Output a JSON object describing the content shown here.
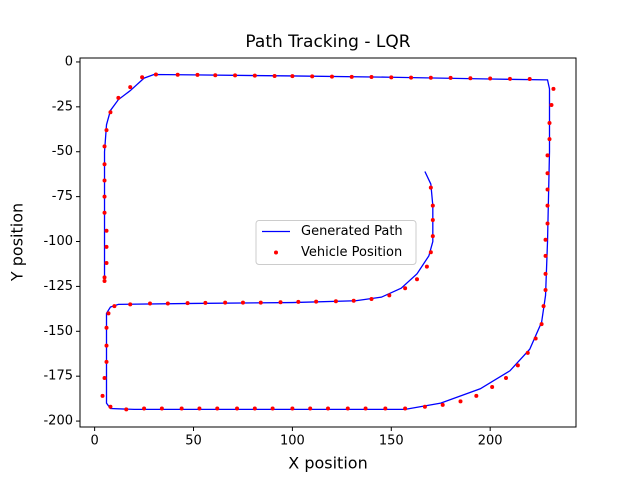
{
  "chart_data": {
    "type": "line",
    "title": "Path Tracking - LQR",
    "x_label": "X position",
    "y_label": "Y position",
    "xlim": [
      -7.4,
      243.4
    ],
    "ylim": [
      -203.3,
      2.2
    ],
    "xticks": [
      0,
      50,
      100,
      150,
      200
    ],
    "yticks": [
      0,
      -25,
      -50,
      -75,
      -100,
      -125,
      -150,
      -175,
      -200
    ],
    "legend_loc": "center",
    "series": [
      {
        "name": "Generated Path",
        "type": "line",
        "color": "#0000ff",
        "x": [
          167,
          170,
          171,
          171,
          169,
          163,
          155,
          145,
          132,
          100,
          50,
          12,
          8,
          6,
          6,
          6,
          8,
          20,
          100,
          157,
          175,
          195,
          210,
          220,
          226,
          228,
          229,
          230,
          230,
          229,
          200,
          150,
          100,
          50,
          30,
          25,
          18,
          12,
          8,
          6,
          5,
          5
        ],
        "values": [
          -61,
          -68,
          -80,
          -100,
          -108,
          -118,
          -126,
          -131,
          -133,
          -134,
          -134.5,
          -135,
          -136.5,
          -140,
          -160,
          -190,
          -193,
          -193.5,
          -193.5,
          -193.5,
          -190,
          -182,
          -172,
          -160,
          -145,
          -130,
          -100,
          -50,
          -15,
          -10,
          -9.5,
          -8.5,
          -7.8,
          -7.2,
          -7,
          -9,
          -16,
          -21,
          -27,
          -35,
          -50,
          -120
        ]
      },
      {
        "name": "Vehicle Position",
        "type": "scatter",
        "color": "#ff0000",
        "x": [
          31,
          42,
          52,
          61,
          71,
          81,
          91,
          100,
          110,
          120,
          130,
          140,
          150,
          160,
          170,
          180,
          190,
          200,
          210,
          220,
          24,
          18,
          12,
          8,
          6,
          5,
          5,
          5,
          5,
          5,
          6,
          6,
          6,
          5,
          5,
          232,
          231,
          230,
          230,
          229,
          229,
          229,
          229,
          229,
          228,
          228,
          228,
          228,
          227,
          226,
          223,
          219,
          214,
          208,
          201,
          193,
          185,
          176,
          167,
          157,
          147,
          137,
          128,
          118,
          109,
          100,
          90,
          81,
          72,
          62,
          53,
          44,
          34,
          25,
          16,
          8,
          4,
          5,
          6,
          6,
          6,
          7,
          10,
          18,
          28,
          37,
          47,
          56,
          66,
          75,
          84,
          94,
          103,
          112,
          122,
          131,
          140,
          149,
          157,
          163,
          168,
          170,
          171,
          171,
          171,
          170
        ],
        "values": [
          -7,
          -7.1,
          -7.2,
          -7.4,
          -7.5,
          -7.6,
          -7.8,
          -7.9,
          -8,
          -8.2,
          -8.3,
          -8.4,
          -8.6,
          -8.7,
          -8.8,
          -8.9,
          -9.1,
          -9.2,
          -9.4,
          -9.5,
          -8.5,
          -14,
          -20,
          -28,
          -38,
          -47,
          -57,
          -66,
          -75,
          -84,
          -94,
          -103,
          -112,
          -120,
          -122,
          -15,
          -24,
          -34,
          -43,
          -52,
          -62,
          -71,
          -80,
          -90,
          -99,
          -108,
          -118,
          -127,
          -136,
          -146,
          -154,
          -162,
          -169,
          -176,
          -181,
          -186,
          -189,
          -191,
          -192,
          -193,
          -193,
          -193,
          -193,
          -193,
          -193,
          -193,
          -193,
          -193,
          -193,
          -193,
          -193,
          -193,
          -193,
          -193,
          -193.5,
          -192,
          -186,
          -176,
          -167,
          -158,
          -148,
          -140,
          -136,
          -135,
          -134.5,
          -134.5,
          -134.3,
          -134.2,
          -134,
          -134,
          -134,
          -133.8,
          -133.6,
          -133.5,
          -133.3,
          -133,
          -132,
          -130,
          -126,
          -121,
          -114,
          -106,
          -97,
          -88,
          -80,
          -70
        ]
      }
    ]
  }
}
